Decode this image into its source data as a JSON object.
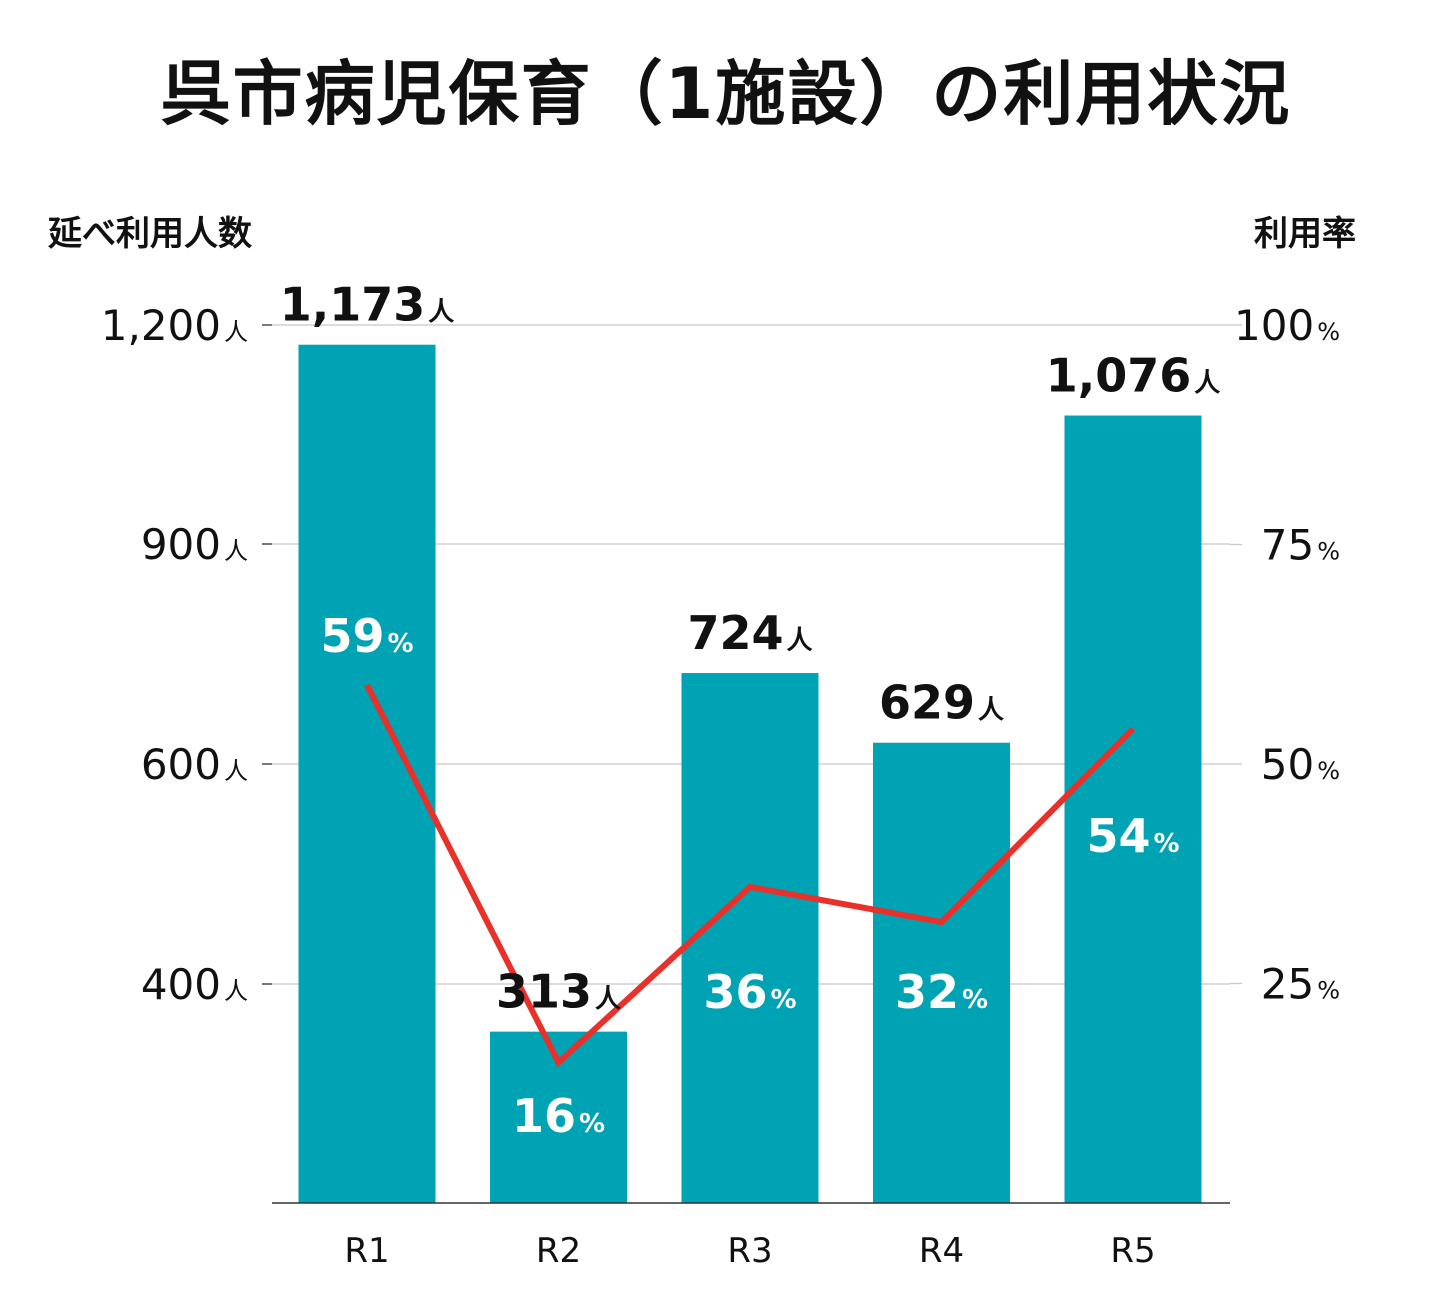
{
  "chart_data": {
    "type": "bar",
    "title": "呉市病児保育（1施設）の利用状況",
    "ylabel": "延べ利用人数",
    "y2label": "利用率",
    "categories": [
      "R1",
      "R2",
      "R3",
      "R4",
      "R5"
    ],
    "series": [
      {
        "name": "",
        "type": "bar",
        "axis": "left",
        "unit": "人",
        "values": [
          1173,
          313,
          724,
          629,
          1076
        ],
        "labels": [
          "1,173",
          "313",
          "724",
          "629",
          "1,076"
        ]
      },
      {
        "name": "",
        "type": "line",
        "axis": "right",
        "unit": "%",
        "values": [
          59,
          16,
          36,
          32,
          54
        ],
        "labels": [
          "59",
          "16",
          "36",
          "32",
          "54"
        ]
      }
    ],
    "left_axis": {
      "ticks": [
        {
          "value": 1200,
          "label": "1,200"
        },
        {
          "value": 900,
          "label": "900"
        },
        {
          "value": 600,
          "label": "600"
        },
        {
          "value": 400,
          "label": "400"
        }
      ],
      "unit": "人"
    },
    "right_axis": {
      "ticks": [
        {
          "value": 100,
          "label": "100"
        },
        {
          "value": 75,
          "label": "75"
        },
        {
          "value": 50,
          "label": "50"
        },
        {
          "value": 25,
          "label": "25"
        }
      ],
      "unit": "%",
      "ylim": [
        0,
        100
      ]
    },
    "grid": true,
    "colors": {
      "bar": "#00A3B4",
      "line": "#E8312A",
      "grid": "#C8C8C8",
      "axis": "#333333"
    }
  }
}
